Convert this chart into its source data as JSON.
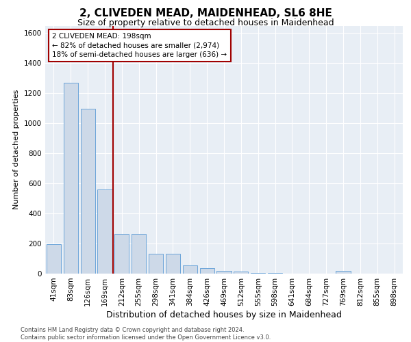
{
  "title": "2, CLIVEDEN MEAD, MAIDENHEAD, SL6 8HE",
  "subtitle": "Size of property relative to detached houses in Maidenhead",
  "xlabel": "Distribution of detached houses by size in Maidenhead",
  "ylabel": "Number of detached properties",
  "footer_line1": "Contains HM Land Registry data © Crown copyright and database right 2024.",
  "footer_line2": "Contains public sector information licensed under the Open Government Licence v3.0.",
  "bar_labels": [
    "41sqm",
    "83sqm",
    "126sqm",
    "169sqm",
    "212sqm",
    "255sqm",
    "298sqm",
    "341sqm",
    "384sqm",
    "426sqm",
    "469sqm",
    "512sqm",
    "555sqm",
    "598sqm",
    "641sqm",
    "684sqm",
    "727sqm",
    "769sqm",
    "812sqm",
    "855sqm",
    "898sqm"
  ],
  "bar_values": [
    197,
    1268,
    1097,
    562,
    262,
    265,
    130,
    130,
    55,
    35,
    20,
    12,
    5,
    5,
    0,
    0,
    0,
    20,
    0,
    0,
    0
  ],
  "bar_color": "#cdd9e8",
  "bar_edge_color": "#5b9bd5",
  "plot_bg_color": "#e8eef5",
  "grid_color": "#ffffff",
  "vline_color": "#a00000",
  "property_size": "198sqm",
  "annotation_text_line1": "2 CLIVEDEN MEAD: 198sqm",
  "annotation_text_line2": "← 82% of detached houses are smaller (2,974)",
  "annotation_text_line3": "18% of semi-detached houses are larger (636) →",
  "annotation_box_facecolor": "#ffffff",
  "annotation_box_edgecolor": "#a00000",
  "ylim": [
    0,
    1650
  ],
  "yticks": [
    0,
    200,
    400,
    600,
    800,
    1000,
    1200,
    1400,
    1600
  ],
  "title_fontsize": 11,
  "subtitle_fontsize": 9,
  "xlabel_fontsize": 9,
  "ylabel_fontsize": 8,
  "tick_fontsize": 7.5,
  "annotation_fontsize": 7.5,
  "footer_fontsize": 6
}
